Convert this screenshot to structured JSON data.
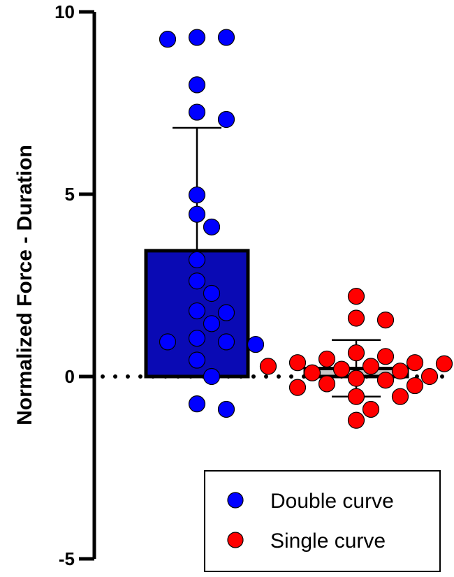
{
  "chart_data": {
    "type": "bar",
    "ylabel": "Normalized  Force - Duration",
    "xlabel": "",
    "ylim": [
      -5,
      10
    ],
    "yticks": [
      "-5",
      "0",
      "5",
      "10"
    ],
    "reference_line": {
      "y": 0,
      "style": "dotted"
    },
    "legend": {
      "position": "bottom-right"
    },
    "series": [
      {
        "name": "Double curve",
        "color": "#0000ff",
        "bar_fill": "#0a0ab4",
        "mean": 3.45,
        "error_upper": 6.82,
        "points": [
          9.3,
          9.3,
          9.25,
          8.0,
          7.25,
          7.05,
          4.98,
          4.45,
          4.1,
          3.2,
          2.62,
          2.28,
          1.8,
          1.75,
          1.45,
          1.05,
          0.95,
          0.95,
          0.88,
          0.45,
          0.0,
          -0.75,
          -0.9
        ]
      },
      {
        "name": "Single curve",
        "color": "#ff0000",
        "bar_fill": "#c8c8c8",
        "mean": 0.22,
        "error_upper": 1.0,
        "error_lower": -0.55,
        "points": [
          2.2,
          1.6,
          1.55,
          0.65,
          0.55,
          0.48,
          0.38,
          0.38,
          0.35,
          0.28,
          0.28,
          0.2,
          0.15,
          0.1,
          0.0,
          -0.05,
          -0.1,
          -0.2,
          -0.25,
          -0.3,
          -0.55,
          -0.55,
          -0.9,
          -1.2
        ]
      }
    ]
  }
}
